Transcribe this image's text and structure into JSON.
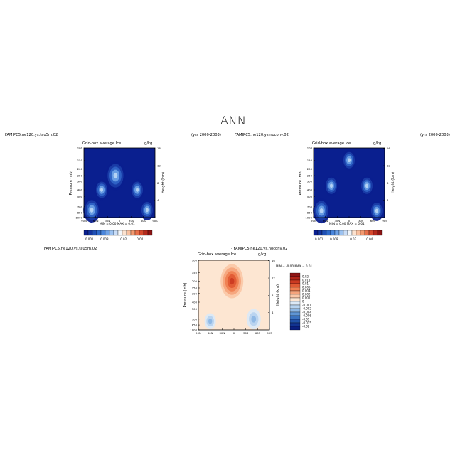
{
  "page_title": "ANN",
  "colors": {
    "deep_blue": "#0a1f8f",
    "frame": "#000000",
    "background": "#ffffff",
    "diff_bg": "#fde6d2"
  },
  "panels": {
    "left": {
      "case_label": "FAMIPC5.ne120.ys.tau5m.02",
      "years": "(yrs 2000-2003)",
      "title": "Grid-box average Ice",
      "units": "g/kg",
      "min_max": "MIN =    0.00   MAX =    0.01",
      "ylabel": "Pressure (mb)",
      "y2label": "Height (km)"
    },
    "right": {
      "case_label": "FAMIPC5.ne120.ys.noconv.02",
      "years": "(yrs 2000-2003)",
      "title": "Grid-box average Ice",
      "units": "g/kg",
      "min_max": "MIN =    0.00   MAX =    0.01",
      "ylabel": "Pressure (mb)",
      "y2label": "Height (km)"
    },
    "diff": {
      "case_label": "FAMIPC5.ne120.ys.tau5m.02",
      "case_label2": "-  FAMIPC5.ne120.ys.noconv.02",
      "title": "Grid-box average Ice",
      "units": "g/kg",
      "min_max": "MIN =   -0.00   MAX =    0.01",
      "ylabel": "Pressure (mb)",
      "y2label": "Height (km)"
    }
  },
  "colorbar_top": {
    "labels": [
      "0.001",
      "0.008",
      "0.02",
      "0.04"
    ],
    "colors": [
      "#0a1f8f",
      "#14349f",
      "#1f4fb5",
      "#2f6bcb",
      "#4a86dc",
      "#6fa3e8",
      "#9cc2f1",
      "#c9ddf7",
      "#f3f7fb",
      "#fce2cf",
      "#f9c1a0",
      "#f39a70",
      "#e8704a",
      "#d64a2e",
      "#b52a1e",
      "#8e1414"
    ]
  },
  "colorbar_diff": {
    "labels": [
      "0.02",
      "0.015",
      "0.01",
      "0.006",
      "0.004",
      "0.002",
      "0.001",
      "0",
      "-0.001",
      "-0.002",
      "-0.004",
      "-0.006",
      "-0.01",
      "-0.015",
      "-0.02"
    ],
    "colors": [
      "#8e1414",
      "#b02418",
      "#cc3a22",
      "#e05a34",
      "#ef7f52",
      "#f6a47c",
      "#fbc8a8",
      "#fde6d2",
      "#dce9f6",
      "#b7d3ef",
      "#8db7e4",
      "#5f95d4",
      "#3a72c0",
      "#2051a8",
      "#123491",
      "#0a1f80"
    ]
  },
  "chart_data": [
    {
      "type": "heatmap",
      "title": "Grid-box average Ice",
      "x_tick_labels": [
        "90N",
        "60N",
        "30N",
        "0",
        "30S",
        "60S",
        "90S"
      ],
      "y_tick_labels": [
        "100",
        "150",
        "200",
        "250",
        "300",
        "400",
        "500",
        "700",
        "850",
        "1000"
      ],
      "y2_tick_labels": [
        "16",
        "12",
        "8",
        "4"
      ],
      "ylim": [
        1000,
        100
      ],
      "min": 0.0,
      "max": 0.01,
      "features": [
        {
          "lat": 10,
          "p": 250,
          "value": 0.008
        },
        {
          "lat": 45,
          "p": 400,
          "value": 0.004
        },
        {
          "lat": -45,
          "p": 400,
          "value": 0.004
        },
        {
          "lat": 70,
          "p": 780,
          "value": 0.006
        },
        {
          "lat": -70,
          "p": 780,
          "value": 0.004
        }
      ]
    },
    {
      "type": "heatmap",
      "title": "Grid-box average Ice",
      "x_tick_labels": [
        "90N",
        "60N",
        "30N",
        "0",
        "30S",
        "60S",
        "90S"
      ],
      "y_tick_labels": [
        "100",
        "150",
        "200",
        "250",
        "300",
        "400",
        "500",
        "700",
        "850",
        "1000"
      ],
      "y2_tick_labels": [
        "16",
        "12",
        "8",
        "4"
      ],
      "ylim": [
        1000,
        100
      ],
      "min": 0.0,
      "max": 0.01,
      "features": [
        {
          "lat": 0,
          "p": 150,
          "value": 0.004
        },
        {
          "lat": 45,
          "p": 350,
          "value": 0.004
        },
        {
          "lat": -45,
          "p": 350,
          "value": 0.004
        },
        {
          "lat": 70,
          "p": 800,
          "value": 0.006
        },
        {
          "lat": -70,
          "p": 800,
          "value": 0.004
        }
      ]
    },
    {
      "type": "heatmap",
      "title": "Grid-box average Ice",
      "x_tick_labels": [
        "90N",
        "60N",
        "30N",
        "0",
        "30S",
        "60S",
        "90S"
      ],
      "y_tick_labels": [
        "100",
        "150",
        "200",
        "250",
        "300",
        "400",
        "500",
        "700",
        "850",
        "1000"
      ],
      "y2_tick_labels": [
        "16",
        "12",
        "8",
        "4"
      ],
      "ylim": [
        1000,
        100
      ],
      "min": -0.0,
      "max": 0.01,
      "features": [
        {
          "lat": 5,
          "p": 200,
          "value": 0.01
        },
        {
          "lat": 60,
          "p": 750,
          "value": -0.002
        },
        {
          "lat": -50,
          "p": 700,
          "value": -0.004
        }
      ]
    }
  ]
}
